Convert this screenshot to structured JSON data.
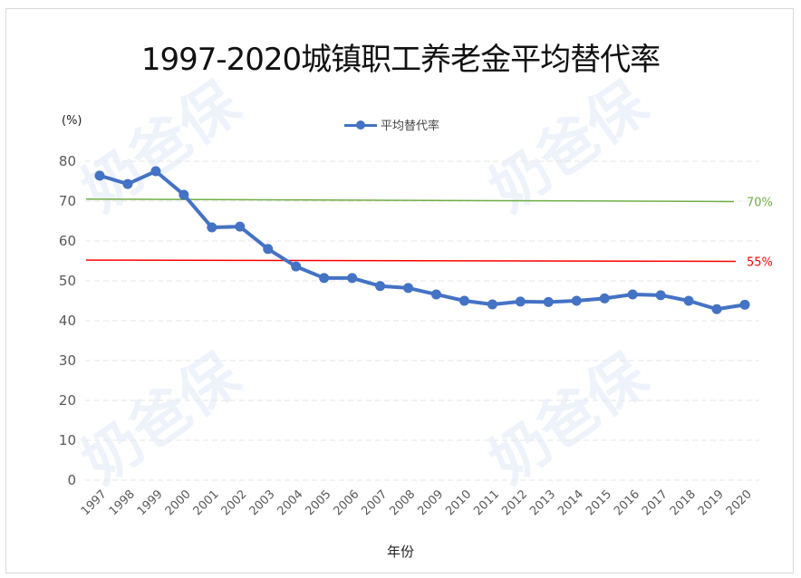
{
  "chart_data": {
    "type": "line",
    "title": "1997-2020城镇职工养老金平均替代率",
    "xlabel": "年份",
    "ylabel": "(%)",
    "ylim": [
      0,
      80
    ],
    "yticks": [
      0,
      10,
      20,
      30,
      40,
      50,
      60,
      70,
      80
    ],
    "grid": true,
    "legend_position": "top",
    "categories": [
      "1997",
      "1998",
      "1999",
      "2000",
      "2001",
      "2002",
      "2003",
      "2004",
      "2005",
      "2006",
      "2007",
      "2008",
      "2009",
      "2010",
      "2011",
      "2012",
      "2013",
      "2014",
      "2015",
      "2016",
      "2017",
      "2018",
      "2019",
      "2020"
    ],
    "series": [
      {
        "name": "平均替代率",
        "color": "#4472c4",
        "values": [
          76.4,
          74.3,
          77.5,
          71.6,
          63.4,
          63.6,
          58.0,
          53.6,
          50.7,
          50.7,
          48.7,
          48.2,
          46.6,
          45.0,
          44.1,
          44.8,
          44.7,
          45.0,
          45.6,
          46.6,
          46.4,
          45.0,
          42.9,
          44.0
        ]
      }
    ],
    "reference_lines": [
      {
        "label": "70%",
        "value": 70.5,
        "color": "#70ad47"
      },
      {
        "label": "55%",
        "value": 55.2,
        "color": "#ff0000"
      }
    ]
  },
  "title": "1997-2020城镇职工养老金平均替代率",
  "unit_label": "(%)",
  "legend_label": "平均替代率",
  "x_axis_title": "年份",
  "ref_labels": {
    "green": "70%",
    "red": "55%"
  },
  "watermark": "奶爸保"
}
